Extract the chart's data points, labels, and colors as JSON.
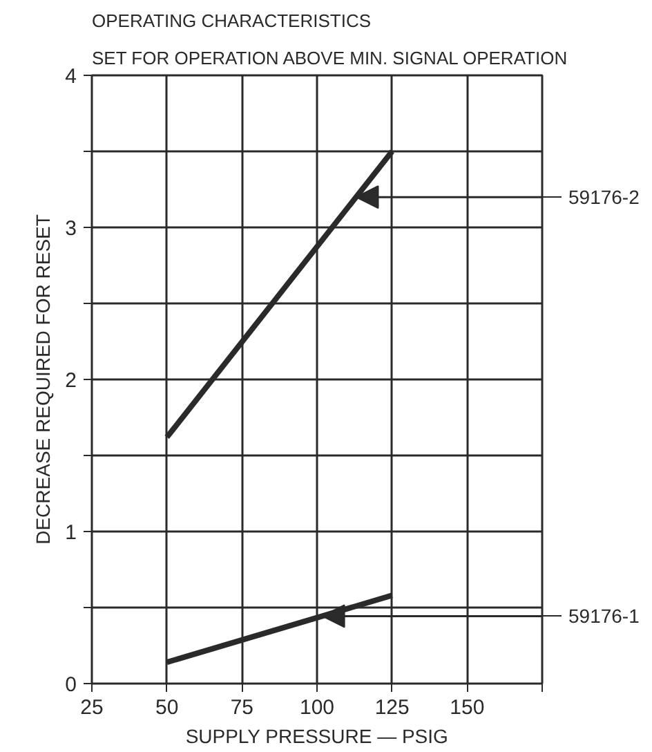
{
  "chart_data": {
    "type": "line",
    "title": "OPERATING CHARACTERISTICS",
    "subtitle": "SET FOR OPERATION ABOVE MIN. SIGNAL OPERATION",
    "xlabel": "SUPPLY PRESSURE — PSIG",
    "ylabel": "DECREASE REQUIRED FOR RESET",
    "series": [
      {
        "name": "59176-2",
        "color": "#2a2a2a",
        "values": [
          1.62,
          3.5
        ]
      },
      {
        "name": "59176-1",
        "color": "#2a2a2a",
        "values": [
          0.14,
          0.58
        ]
      }
    ],
    "x": [
      50,
      125
    ],
    "xlim": [
      25,
      175
    ],
    "xticks": [
      25,
      50,
      75,
      100,
      125,
      150,
      {
        "value": 175,
        "label": null
      }
    ],
    "ylim": [
      0,
      4
    ],
    "yticks": [
      0,
      {
        "value": 0.5,
        "label": null
      },
      1,
      {
        "value": 1.5,
        "label": null
      },
      2,
      {
        "value": 2.5,
        "label": null
      },
      3,
      {
        "value": 3.5,
        "label": null
      },
      4
    ],
    "grid": true,
    "legend": "right",
    "marker": "none",
    "line_style": "solid"
  }
}
